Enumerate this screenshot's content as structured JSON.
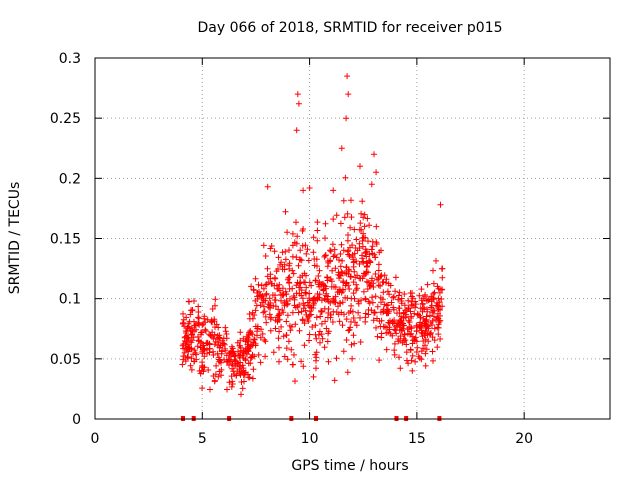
{
  "chart_data": {
    "type": "scatter",
    "title": "Day 066 of 2018, SRMTID for receiver p015",
    "xlabel": "GPS time / hours",
    "ylabel": "SRMTID / TECUs",
    "xlim": [
      0,
      24
    ],
    "ylim": [
      0,
      0.3
    ],
    "x_ticks": [
      0,
      5,
      10,
      15,
      20
    ],
    "y_ticks": [
      0,
      0.05,
      0.1,
      0.15,
      0.2,
      0.25,
      0.3
    ],
    "x_tick_labels": [
      "0",
      "5",
      "10",
      "15",
      "20"
    ],
    "y_tick_labels": [
      "0",
      "0.05",
      "0.1",
      "0.15",
      "0.2",
      "0.25",
      "0.3"
    ],
    "grid": true,
    "marker": "+",
    "marker_color": "#ff0000",
    "baseline_markers_x": [
      4.1,
      4.6,
      6.25,
      9.15,
      10.3,
      14.05,
      14.5,
      16.05
    ],
    "envelope": {
      "x": [
        4.0,
        4.5,
        5.0,
        5.5,
        6.0,
        6.5,
        7.0,
        7.5,
        8.0,
        8.5,
        9.0,
        9.5,
        10.0,
        10.5,
        11.0,
        11.5,
        12.0,
        12.5,
        13.0,
        13.5,
        14.0,
        14.5,
        15.0,
        15.5,
        16.0,
        16.2
      ],
      "y_center": [
        0.07,
        0.07,
        0.06,
        0.065,
        0.06,
        0.045,
        0.05,
        0.085,
        0.1,
        0.1,
        0.1,
        0.11,
        0.1,
        0.1,
        0.11,
        0.12,
        0.12,
        0.13,
        0.11,
        0.1,
        0.08,
        0.08,
        0.075,
        0.08,
        0.09,
        0.11
      ],
      "y_spread": [
        0.02,
        0.025,
        0.025,
        0.03,
        0.02,
        0.015,
        0.02,
        0.03,
        0.04,
        0.04,
        0.045,
        0.05,
        0.045,
        0.04,
        0.045,
        0.05,
        0.055,
        0.045,
        0.04,
        0.035,
        0.025,
        0.025,
        0.025,
        0.025,
        0.025,
        0.03
      ]
    },
    "n_points": 1200,
    "peaks": [
      {
        "x": 9.45,
        "y": 0.27
      },
      {
        "x": 9.5,
        "y": 0.262
      },
      {
        "x": 9.4,
        "y": 0.24
      },
      {
        "x": 11.75,
        "y": 0.285
      },
      {
        "x": 11.8,
        "y": 0.27
      },
      {
        "x": 11.7,
        "y": 0.25
      },
      {
        "x": 11.5,
        "y": 0.225
      },
      {
        "x": 12.35,
        "y": 0.21
      },
      {
        "x": 13.0,
        "y": 0.22
      },
      {
        "x": 13.1,
        "y": 0.205
      },
      {
        "x": 16.1,
        "y": 0.178
      },
      {
        "x": 9.7,
        "y": 0.19
      },
      {
        "x": 8.05,
        "y": 0.193
      },
      {
        "x": 10.0,
        "y": 0.192
      },
      {
        "x": 11.1,
        "y": 0.19
      },
      {
        "x": 12.9,
        "y": 0.195
      }
    ]
  }
}
